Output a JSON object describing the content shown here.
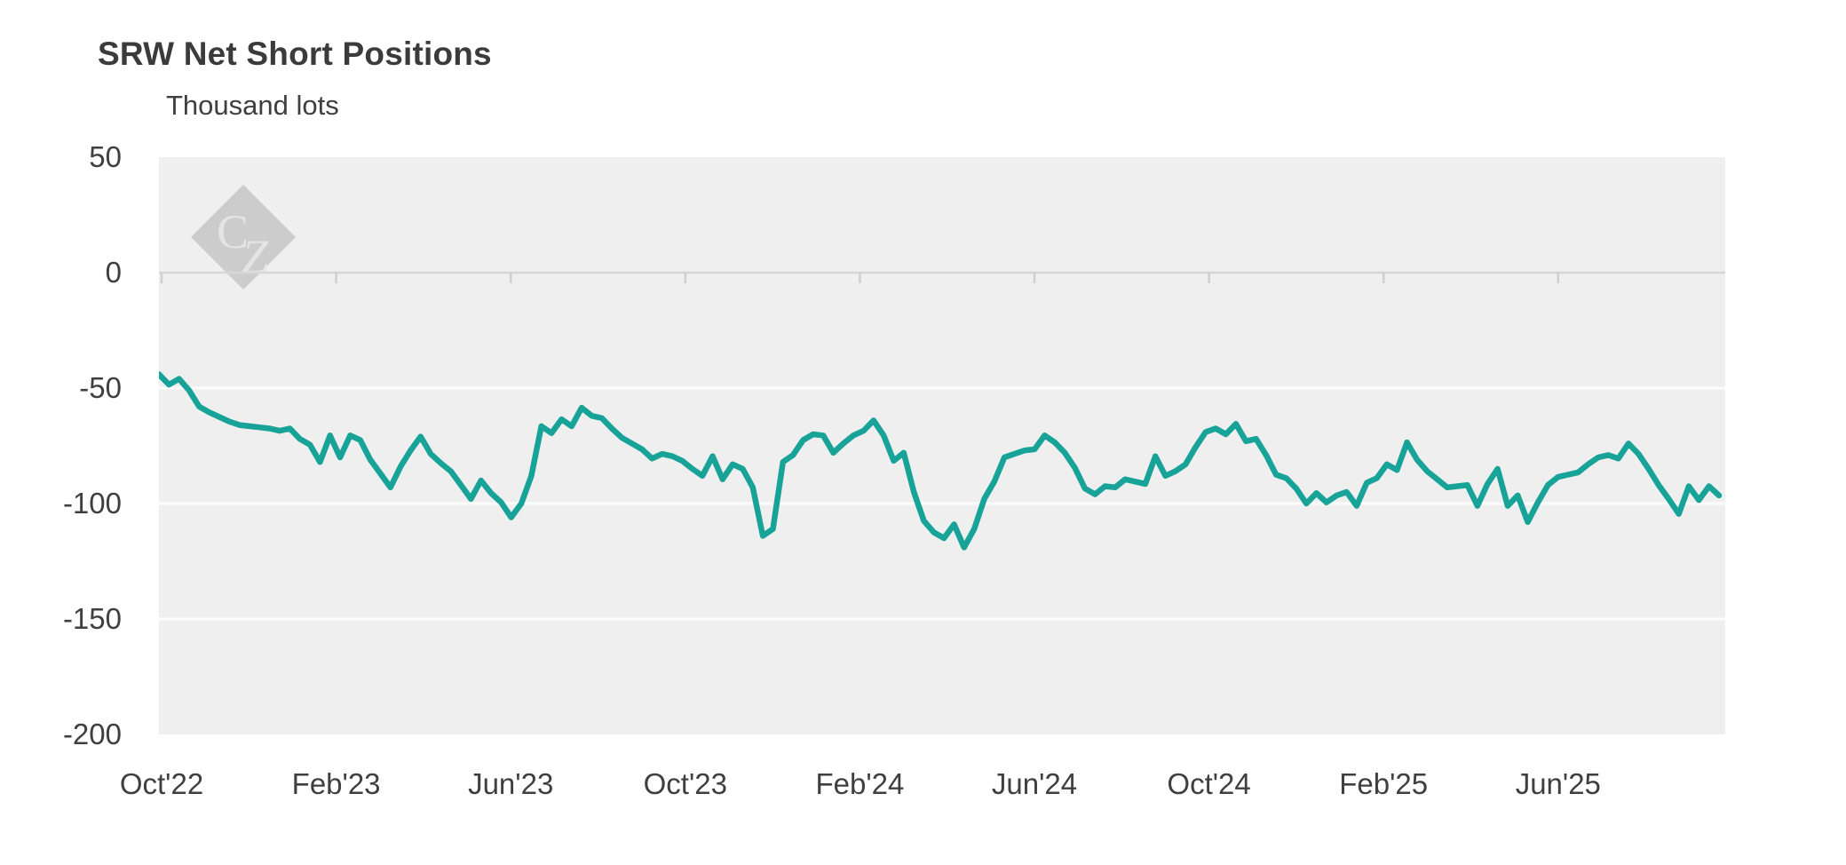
{
  "header": {
    "title": "SRW Net Short Positions",
    "subtitle": "Thousand lots"
  },
  "watermark": {
    "letter_c": "C",
    "letter_z": "Z"
  },
  "colors": {
    "line": "#17a398",
    "plot_background": "#f0efef",
    "gridline": "#ffffff",
    "zero_axis": "#d7d7d7",
    "tick": "#cfcfcf",
    "text": "#3f3f3f",
    "watermark_diamond": "#c6c6c6",
    "watermark_letters": "#e6e6e6"
  },
  "chart_data": {
    "type": "line",
    "title": "SRW Net Short Positions",
    "subtitle_unit_label": "Thousand lots",
    "legend": "none",
    "grid": "horizontal",
    "ylim": [
      -200,
      50
    ],
    "y_tick_values": [
      50,
      0,
      -50,
      -100,
      -150,
      -200
    ],
    "y_tick_labels": [
      "50",
      "0",
      "-50",
      "-100",
      "-150",
      "-200"
    ],
    "gridline_values": [
      -50,
      -100,
      -150
    ],
    "zero_axis_value": 0,
    "x_tick_labels": [
      "Oct'22",
      "Feb'23",
      "Jun'23",
      "Oct'23",
      "Feb'24",
      "Jun'24",
      "Oct'24",
      "Feb'25",
      "Jun'25"
    ],
    "x_range_note": "weekly observations, Oct 2022 through late Sep 2025",
    "series": [
      {
        "name": "SRW net short positions",
        "unit": "thousand lots",
        "frequency": "weekly",
        "start": "Oct 2022",
        "end": "Sep 2025",
        "values": [
          -44,
          -48.5,
          -46,
          -51,
          -58,
          -60.5,
          -62.5,
          -64.5,
          -66,
          -66.5,
          -67,
          -67.5,
          -68.5,
          -67.5,
          -72,
          -74.5,
          -82,
          -70.5,
          -80,
          -70.5,
          -72.5,
          -81,
          -87,
          -93,
          -84,
          -77,
          -71,
          -78.5,
          -82.5,
          -86,
          -92,
          -98,
          -90,
          -95.5,
          -99.5,
          -106,
          -100,
          -88,
          -66.5,
          -69.5,
          -63.5,
          -66.5,
          -58.5,
          -62,
          -63,
          -67.5,
          -71.5,
          -74,
          -76.5,
          -80.5,
          -78.5,
          -79.5,
          -81.5,
          -85,
          -88,
          -79.5,
          -89.5,
          -83,
          -85,
          -93,
          -114,
          -111,
          -82,
          -79,
          -72.5,
          -70,
          -70.5,
          -78,
          -74,
          -70.5,
          -68.5,
          -64,
          -70.5,
          -81.5,
          -78,
          -95,
          -107.5,
          -112.5,
          -115,
          -109,
          -119,
          -111,
          -98,
          -90.5,
          -80,
          -78.5,
          -77,
          -76.5,
          -70.5,
          -73.5,
          -78,
          -84.5,
          -93.5,
          -96,
          -92.5,
          -93,
          -89.5,
          -90.5,
          -91.5,
          -79.5,
          -88,
          -86,
          -83,
          -75.5,
          -69,
          -67.5,
          -70,
          -65.5,
          -73,
          -72,
          -79,
          -87.5,
          -89,
          -93.5,
          -100,
          -95.5,
          -99.5,
          -96.5,
          -95,
          -101,
          -91,
          -89,
          -83,
          -85.5,
          -73.5,
          -81,
          -86,
          -89.5,
          -93,
          -92.5,
          -92,
          -101,
          -91.5,
          -85,
          -101,
          -96.5,
          -108,
          -99.5,
          -92,
          -88.5,
          -87.5,
          -86.5,
          -83,
          -80,
          -79,
          -80.5,
          -74,
          -78.5,
          -85,
          -92,
          -98,
          -104.5,
          -92.5,
          -98.5,
          -92.5,
          -96.5
        ]
      }
    ]
  }
}
